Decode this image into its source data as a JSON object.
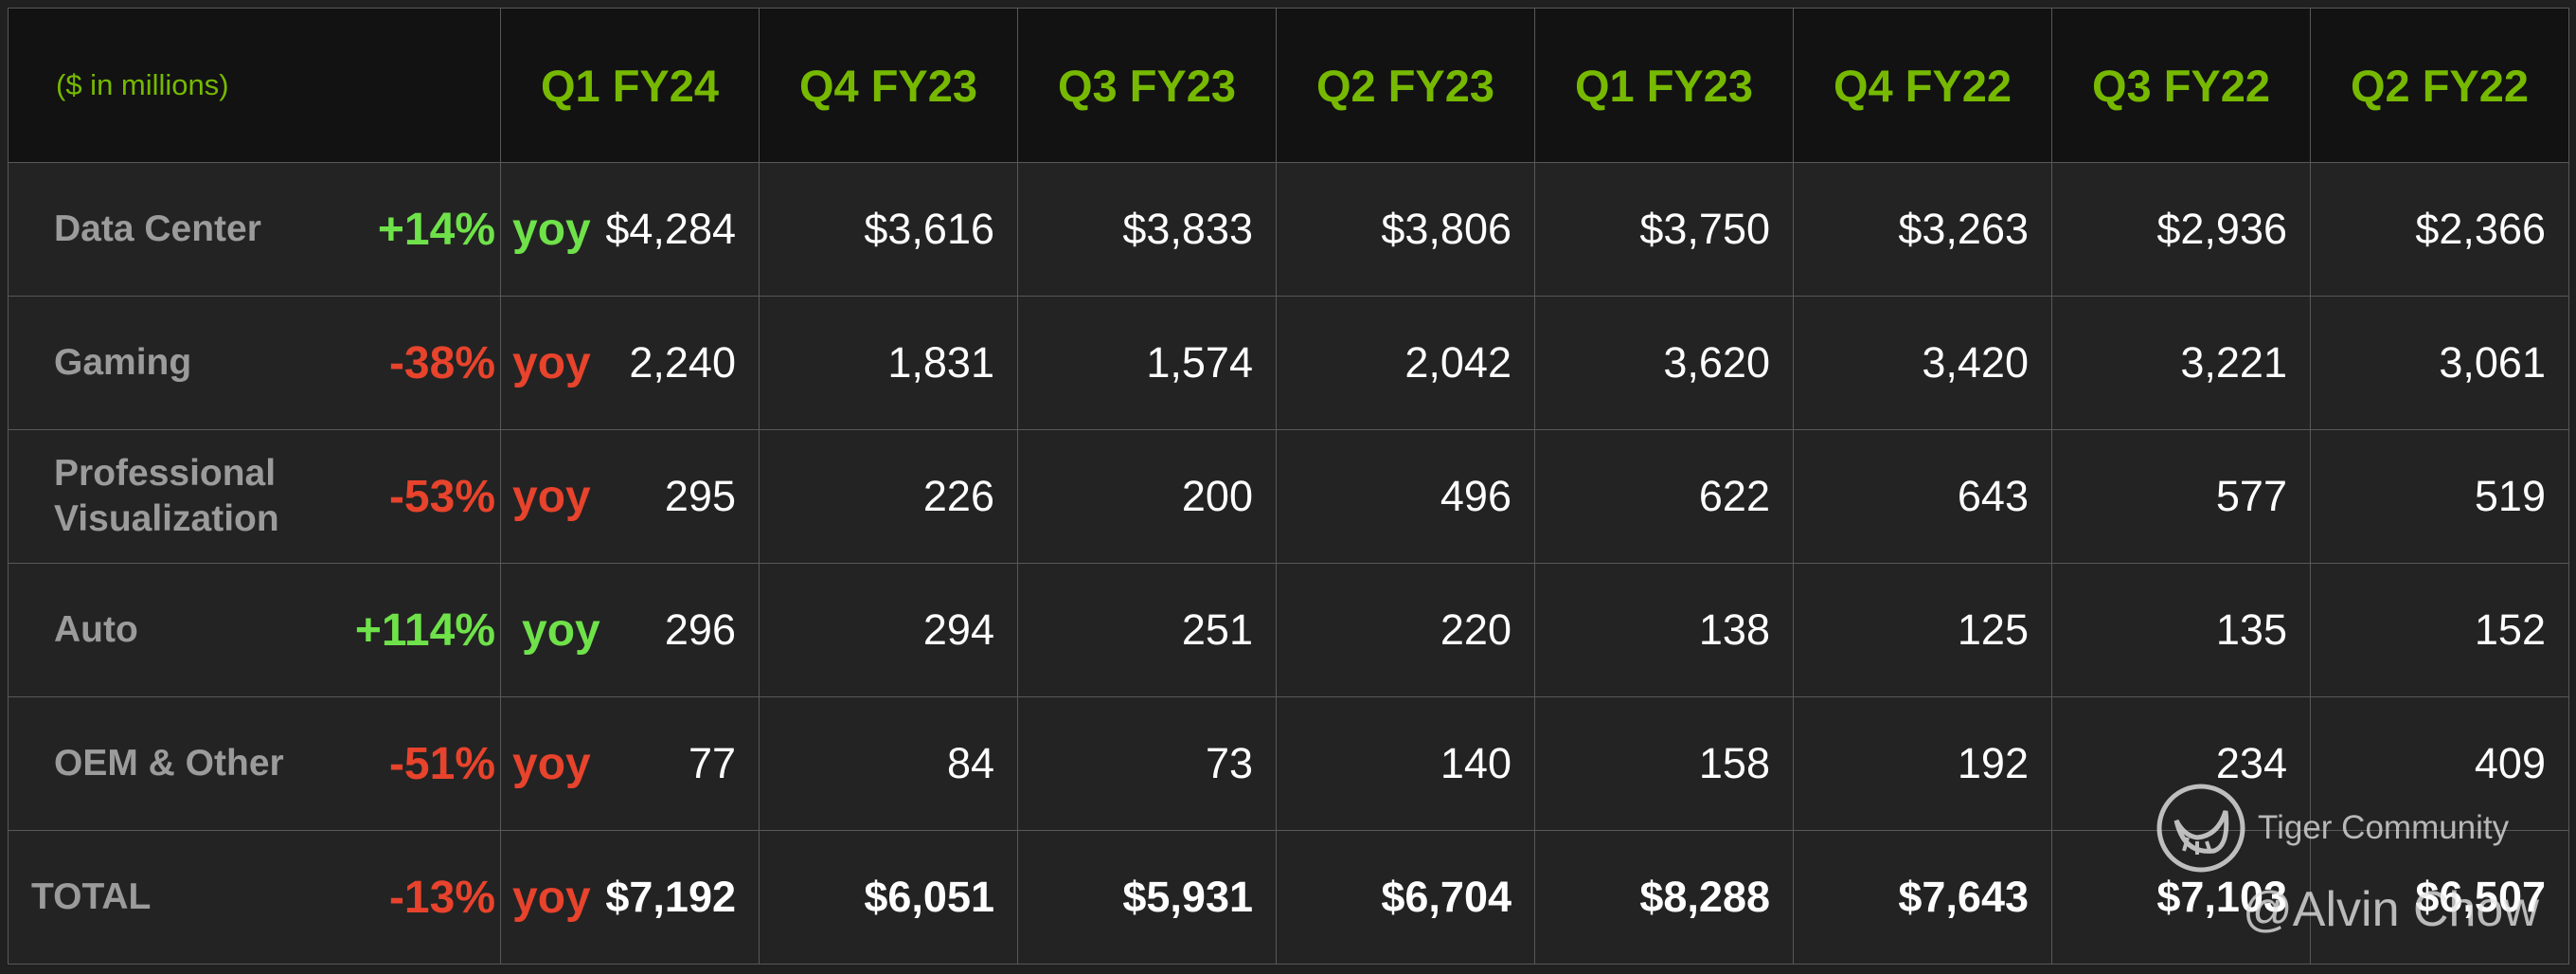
{
  "table": {
    "unit_label": "($ in millions)",
    "quarters": [
      "Q1 FY24",
      "Q4 FY23",
      "Q3 FY23",
      "Q2 FY23",
      "Q1 FY23",
      "Q4 FY22",
      "Q3 FY22",
      "Q2 FY22"
    ],
    "rows": [
      {
        "segment": "Data Center",
        "change": "+14%",
        "yoy": "yoy",
        "direction": "up",
        "values": [
          "$4,284",
          "$3,616",
          "$3,833",
          "$3,806",
          "$3,750",
          "$3,263",
          "$2,936",
          "$2,366"
        ]
      },
      {
        "segment": "Gaming",
        "change": "-38%",
        "yoy": "yoy",
        "direction": "down",
        "values": [
          "2,240",
          "1,831",
          "1,574",
          "2,042",
          "3,620",
          "3,420",
          "3,221",
          "3,061"
        ]
      },
      {
        "segment": "Professional Visualization",
        "change": "-53%",
        "yoy": "yoy",
        "direction": "down",
        "values": [
          "295",
          "226",
          "200",
          "496",
          "622",
          "643",
          "577",
          "519"
        ]
      },
      {
        "segment": "Auto",
        "change": "+114%",
        "yoy": "yoy",
        "direction": "up",
        "values": [
          "296",
          "294",
          "251",
          "220",
          "138",
          "125",
          "135",
          "152"
        ]
      },
      {
        "segment": "OEM & Other",
        "change": "-51%",
        "yoy": "yoy",
        "direction": "down",
        "values": [
          "77",
          "84",
          "73",
          "140",
          "158",
          "192",
          "234",
          "409"
        ]
      },
      {
        "segment": "TOTAL",
        "change": "-13%",
        "yoy": "yoy",
        "direction": "down",
        "values": [
          "$7,192",
          "$6,051",
          "$5,931",
          "$6,704",
          "$8,288",
          "$7,643",
          "$7,103",
          "$6,507"
        ]
      }
    ]
  },
  "colors": {
    "header_text": "#76b900",
    "up": "#6fe24a",
    "down": "#e8432c",
    "value_text": "#ffffff",
    "segment_text": "#9b9b9b"
  },
  "watermark": {
    "brand": "Tiger Community",
    "author": "@Alvin Chow",
    "icon": "tiger-logo-icon"
  }
}
